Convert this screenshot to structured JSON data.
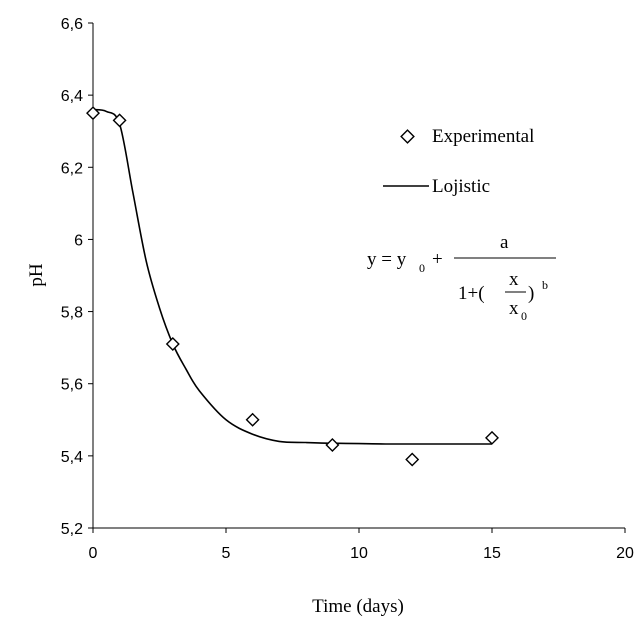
{
  "chart_data": {
    "type": "scatter",
    "xlabel": "Time (days)",
    "ylabel": "pH",
    "xlim": [
      0,
      20
    ],
    "ylim": [
      5.2,
      6.6
    ],
    "x_ticks": [
      "0",
      "5",
      "10",
      "15",
      "20"
    ],
    "y_ticks": [
      "5,2",
      "5,4",
      "5,6",
      "5,8",
      "6",
      "6,2",
      "6,4",
      "6,6"
    ],
    "grid": false,
    "legend_position": "right",
    "series": [
      {
        "name": "Experimental",
        "kind": "markers",
        "marker": "diamond",
        "x": [
          0,
          1,
          3,
          6,
          9,
          12,
          15
        ],
        "y": [
          6.35,
          6.33,
          5.71,
          5.5,
          5.43,
          5.39,
          5.45
        ]
      },
      {
        "name": "Lojistic",
        "kind": "line",
        "x": [
          0,
          0.5,
          1,
          1.5,
          2,
          2.5,
          3,
          3.5,
          4,
          5,
          6,
          7,
          8,
          9,
          10,
          11,
          12,
          13,
          14,
          15
        ],
        "y": [
          6.36,
          6.355,
          6.32,
          6.13,
          5.94,
          5.81,
          5.71,
          5.64,
          5.58,
          5.5,
          5.46,
          5.44,
          5.437,
          5.435,
          5.434,
          5.433,
          5.433,
          5.433,
          5.433,
          5.433
        ]
      }
    ],
    "equation": {
      "lhs": "y = y",
      "y0_sub": "0",
      "plus": "+",
      "numerator": "a",
      "denominator_prefix": "1+(",
      "inner_numerator": "x",
      "inner_denominator": "x",
      "x0_sub": "0",
      "suffix": ")",
      "exponent": "b"
    }
  }
}
